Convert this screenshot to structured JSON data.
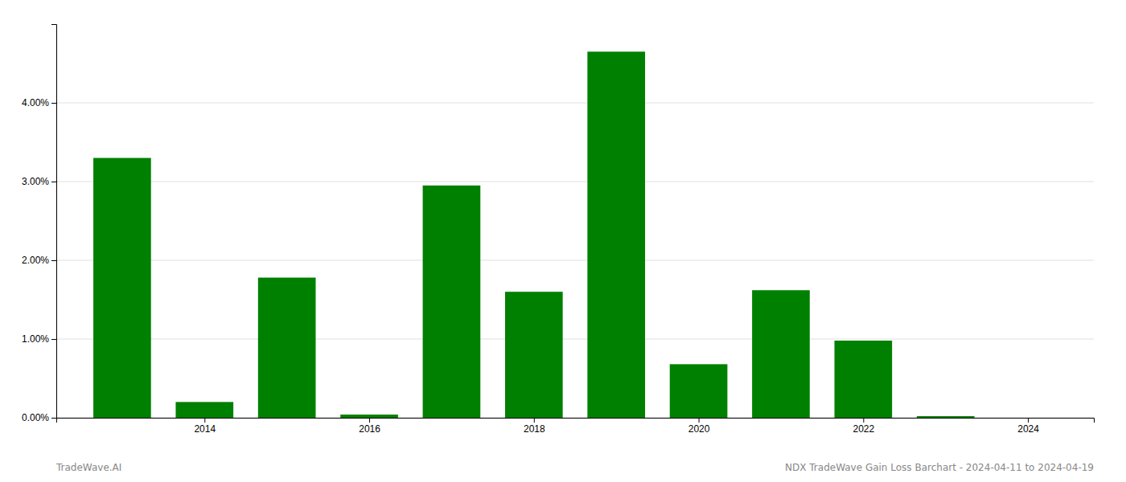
{
  "chart_data": {
    "type": "bar",
    "x": [
      2013,
      2014,
      2015,
      2016,
      2017,
      2018,
      2019,
      2020,
      2021,
      2022,
      2023
    ],
    "values": [
      3.3,
      0.2,
      1.78,
      0.04,
      2.95,
      1.6,
      4.65,
      0.68,
      1.62,
      0.98,
      0.02
    ],
    "color": "#008000",
    "xlim": [
      2012.2,
      2024.8
    ],
    "xticks": [
      2014,
      2016,
      2018,
      2020,
      2022,
      2024
    ],
    "ylim": [
      0,
      5.0
    ],
    "yticks": [
      {
        "value": 0.0,
        "label": "0.00%"
      },
      {
        "value": 1.0,
        "label": "1.00%"
      },
      {
        "value": 2.0,
        "label": "2.00%"
      },
      {
        "value": 3.0,
        "label": "3.00%"
      },
      {
        "value": 4.0,
        "label": "4.00%"
      }
    ],
    "grid": true,
    "annotations": [
      "TradeWave.AI",
      "NDX TradeWave Gain Loss Barchart - 2024-04-11 to 2024-04-19"
    ]
  }
}
